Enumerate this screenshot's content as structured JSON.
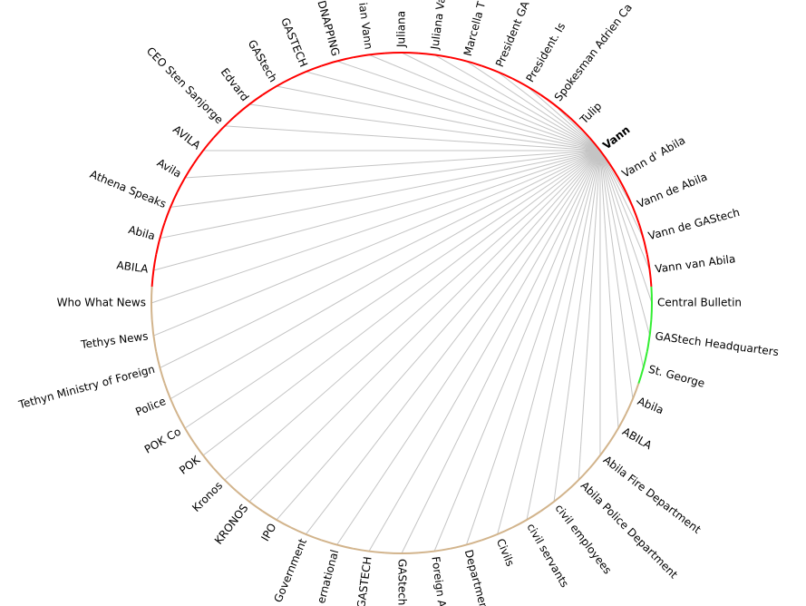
{
  "focus_node": "Vann",
  "colors": {
    "group_red": "#ff0000",
    "group_green": "#33ee33",
    "group_tan": "#d2b48c",
    "link": "#c4c4c4",
    "background": "#ffffff"
  },
  "nodes": [
    {
      "label": "Juliana",
      "group": "red"
    },
    {
      "label": "Juliana Va",
      "group": "red"
    },
    {
      "label": "Marcella T",
      "group": "red"
    },
    {
      "label": "President GA",
      "group": "red"
    },
    {
      "label": "President. Is",
      "group": "red"
    },
    {
      "label": "Spokesman Adrien Ca",
      "group": "red"
    },
    {
      "label": "Tulip",
      "group": "red"
    },
    {
      "label": "Vann",
      "group": "red"
    },
    {
      "label": "Vann d' Abila",
      "group": "red"
    },
    {
      "label": "Vann de Abila",
      "group": "red"
    },
    {
      "label": "Vann de GAStech",
      "group": "red"
    },
    {
      "label": "Vann van Abila",
      "group": "red"
    },
    {
      "label": "Central Bulletin",
      "group": "green"
    },
    {
      "label": "GAStech Headquarters",
      "group": "green"
    },
    {
      "label": "St. George",
      "group": "green"
    },
    {
      "label": "Abila",
      "group": "tan"
    },
    {
      "label": "ABILA",
      "group": "tan"
    },
    {
      "label": "Abila Fire Department",
      "group": "tan"
    },
    {
      "label": "Abila Police Department",
      "group": "tan"
    },
    {
      "label": "civil employees",
      "group": "tan"
    },
    {
      "label": "civil servants",
      "group": "tan"
    },
    {
      "label": "Civils",
      "group": "tan"
    },
    {
      "label": "Departmen",
      "group": "tan"
    },
    {
      "label": "Foreign A",
      "group": "tan"
    },
    {
      "label": "GAStech",
      "group": "tan"
    },
    {
      "label": "GASTECH",
      "group": "tan"
    },
    {
      "label": "ernational",
      "group": "tan"
    },
    {
      "label": "Government",
      "group": "tan"
    },
    {
      "label": "IPO",
      "group": "tan"
    },
    {
      "label": "KRONOS",
      "group": "tan"
    },
    {
      "label": "Kronos",
      "group": "tan"
    },
    {
      "label": "POK",
      "group": "tan"
    },
    {
      "label": "POK Co",
      "group": "tan"
    },
    {
      "label": "Police",
      "group": "tan"
    },
    {
      "label": "Tethyn Ministry of Foreign",
      "group": "tan"
    },
    {
      "label": "Tethys News",
      "group": "tan"
    },
    {
      "label": "Who What News",
      "group": "tan"
    },
    {
      "label": "ABILA",
      "group": "red"
    },
    {
      "label": "Abila",
      "group": "red"
    },
    {
      "label": "Athena Speaks",
      "group": "red"
    },
    {
      "label": "Avila",
      "group": "red"
    },
    {
      "label": "AVILA",
      "group": "red"
    },
    {
      "label": "CEO Sten Sanjorge",
      "group": "red"
    },
    {
      "label": "Edvard",
      "group": "red"
    },
    {
      "label": "GAStech",
      "group": "red"
    },
    {
      "label": "GASTECH",
      "group": "red"
    },
    {
      "label": "DNAPPING",
      "group": "red"
    },
    {
      "label": "ian Vann",
      "group": "red"
    }
  ]
}
